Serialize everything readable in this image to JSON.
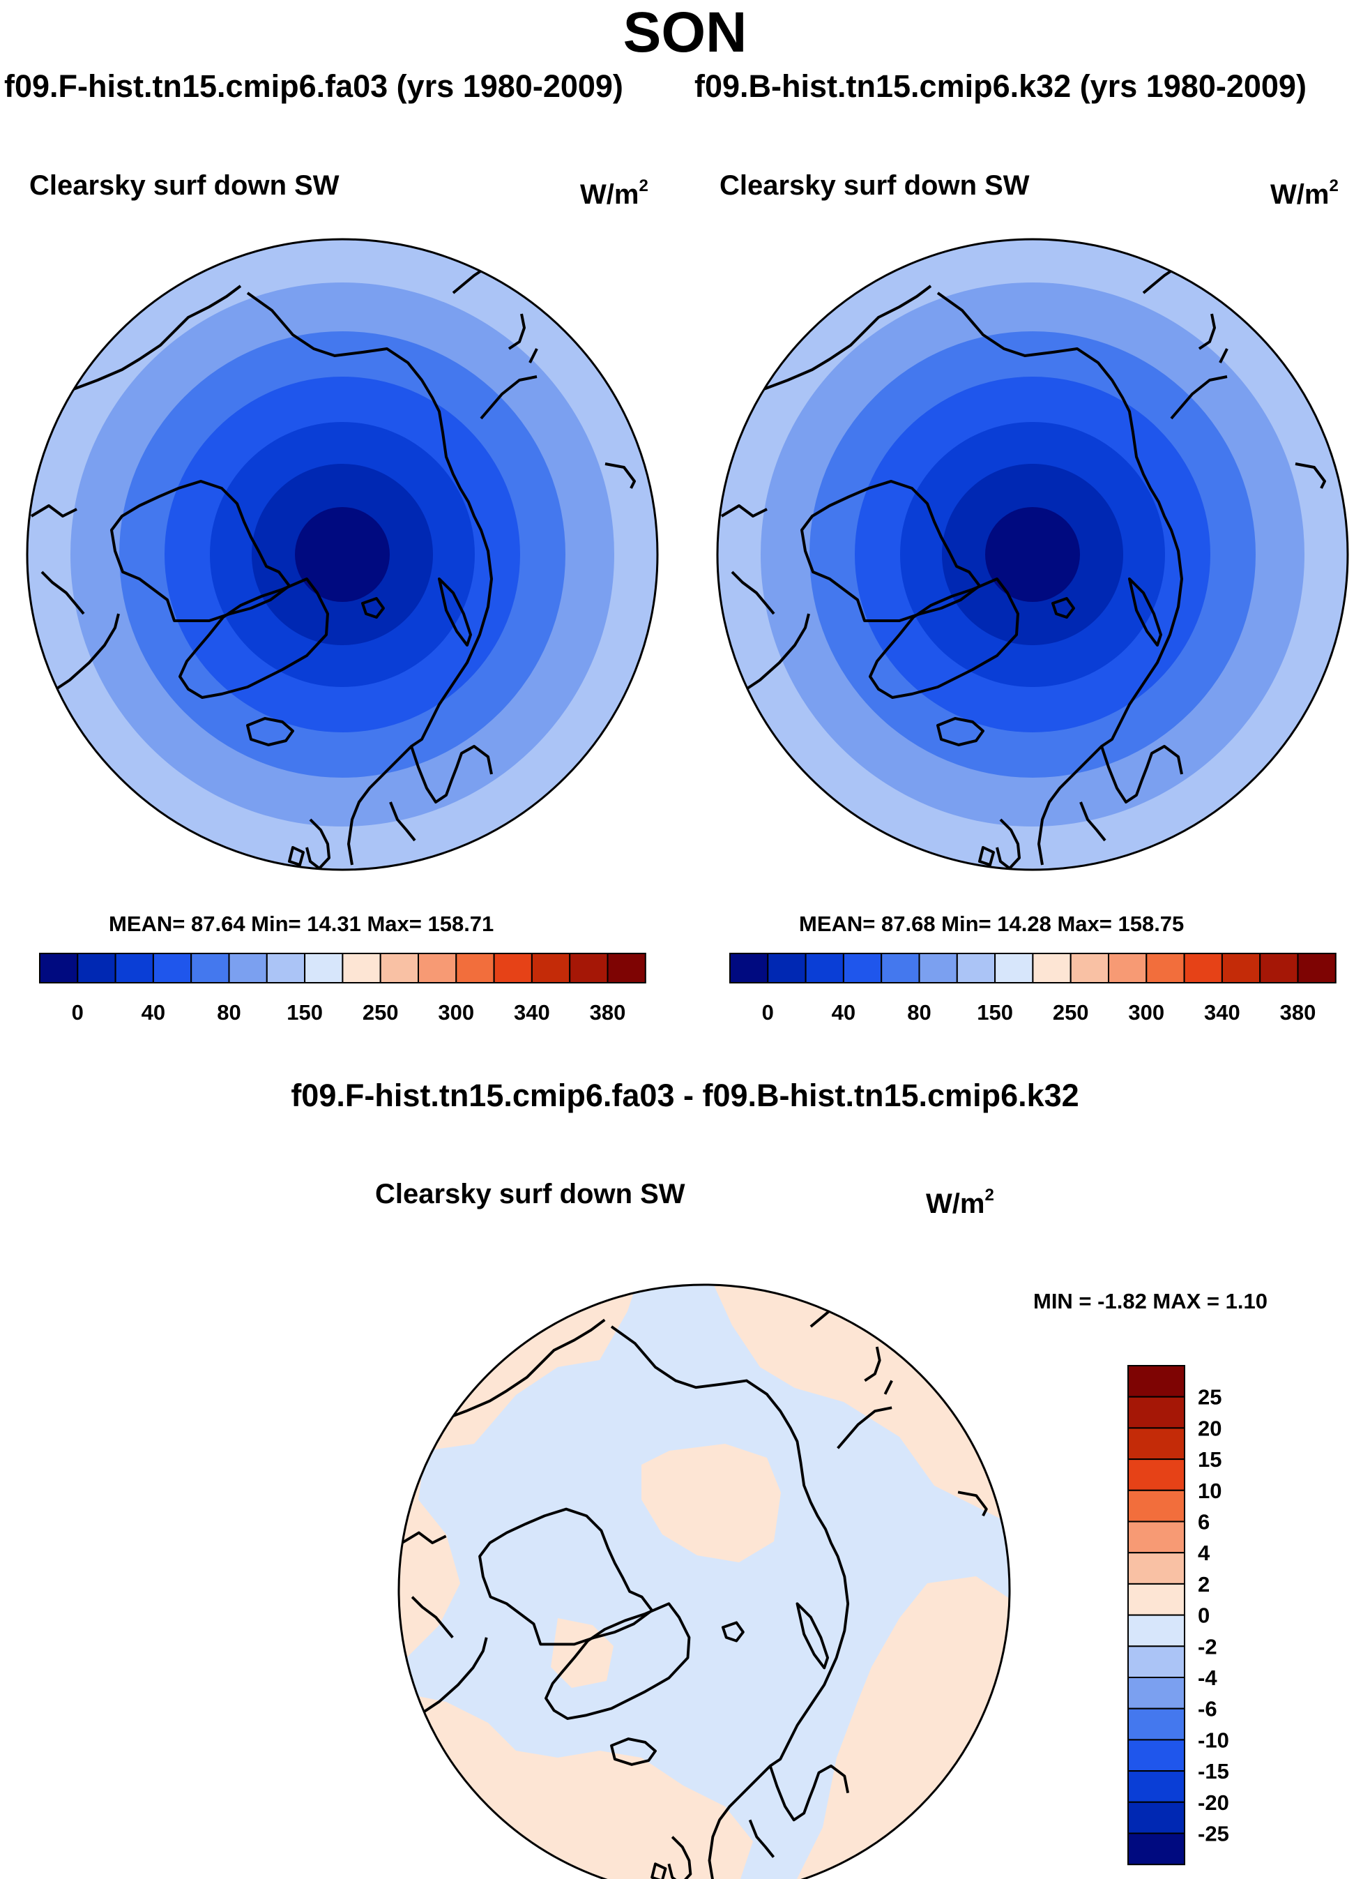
{
  "title": "SON",
  "case_left": "f09.F-hist.tn15.cmip6.fa03 (yrs 1980-2009)",
  "case_right": "f09.B-hist.tn15.cmip6.k32 (yrs 1980-2009)",
  "diff_title": "f09.F-hist.tn15.cmip6.fa03 - f09.B-hist.tn15.cmip6.k32",
  "units_base": "W/m",
  "units_exp": "2",
  "chart_data": [
    {
      "type": "heatmap",
      "projection": "north polar stereographic",
      "title": "Clearsky surf down SW",
      "units": "W/m2",
      "stats": {
        "mean": 87.64,
        "min": 14.31,
        "max": 158.71
      },
      "stats_text": "MEAN=  87.64  Min=  14.31  Max= 158.71",
      "colorbar_levels": [
        0,
        20,
        40,
        60,
        80,
        100,
        150,
        200,
        250,
        275,
        300,
        325,
        340,
        360,
        380
      ],
      "colorbar_labels": [
        "0",
        "40",
        "80",
        "150",
        "250",
        "300",
        "340",
        "380"
      ],
      "colorbar_colors": [
        "#000a80",
        "#0028b3",
        "#0a3ed6",
        "#1f56ec",
        "#4478ee",
        "#7ba0f0",
        "#abc4f6",
        "#d7e6fb",
        "#fde5d4",
        "#f9c1a4",
        "#f79a74",
        "#f26e3c",
        "#e64217",
        "#c42b08",
        "#a51706",
        "#7e0403"
      ],
      "ring_colors": [
        "#abc4f6",
        "#7ba0f0",
        "#4478ee",
        "#1f56ec",
        "#0a3ed6",
        "#0028b3",
        "#000a80"
      ]
    },
    {
      "type": "heatmap",
      "projection": "north polar stereographic",
      "title": "Clearsky surf down SW",
      "units": "W/m2",
      "stats": {
        "mean": 87.68,
        "min": 14.28,
        "max": 158.75
      },
      "stats_text": "MEAN=  87.68  Min=  14.28  Max= 158.75",
      "colorbar_levels": [
        0,
        20,
        40,
        60,
        80,
        100,
        150,
        200,
        250,
        275,
        300,
        325,
        340,
        360,
        380
      ],
      "colorbar_labels": [
        "0",
        "40",
        "80",
        "150",
        "250",
        "300",
        "340",
        "380"
      ],
      "colorbar_colors": [
        "#000a80",
        "#0028b3",
        "#0a3ed6",
        "#1f56ec",
        "#4478ee",
        "#7ba0f0",
        "#abc4f6",
        "#d7e6fb",
        "#fde5d4",
        "#f9c1a4",
        "#f79a74",
        "#f26e3c",
        "#e64217",
        "#c42b08",
        "#a51706",
        "#7e0403"
      ],
      "ring_colors": [
        "#abc4f6",
        "#7ba0f0",
        "#4478ee",
        "#1f56ec",
        "#0a3ed6",
        "#0028b3",
        "#000a80"
      ]
    },
    {
      "type": "heatmap",
      "projection": "north polar stereographic",
      "title": "Clearsky surf down SW",
      "units": "W/m2",
      "stats": {
        "min": -1.82,
        "max": 1.1
      },
      "stats_text": "MIN =  -1.82 MAX =   1.10",
      "colorbar_labels": [
        "25",
        "20",
        "15",
        "10",
        "6",
        "4",
        "2",
        "0",
        "-2",
        "-4",
        "-6",
        "-10",
        "-15",
        "-20",
        "-25"
      ],
      "colorbar_colors": [
        "#7e0403",
        "#a51706",
        "#c42b08",
        "#e64217",
        "#f26e3c",
        "#f79a74",
        "#f9c1a4",
        "#fde5d4",
        "#d7e6fb",
        "#abc4f6",
        "#7ba0f0",
        "#4478ee",
        "#1f56ec",
        "#0a3ed6",
        "#0028b3",
        "#000a80"
      ]
    }
  ]
}
